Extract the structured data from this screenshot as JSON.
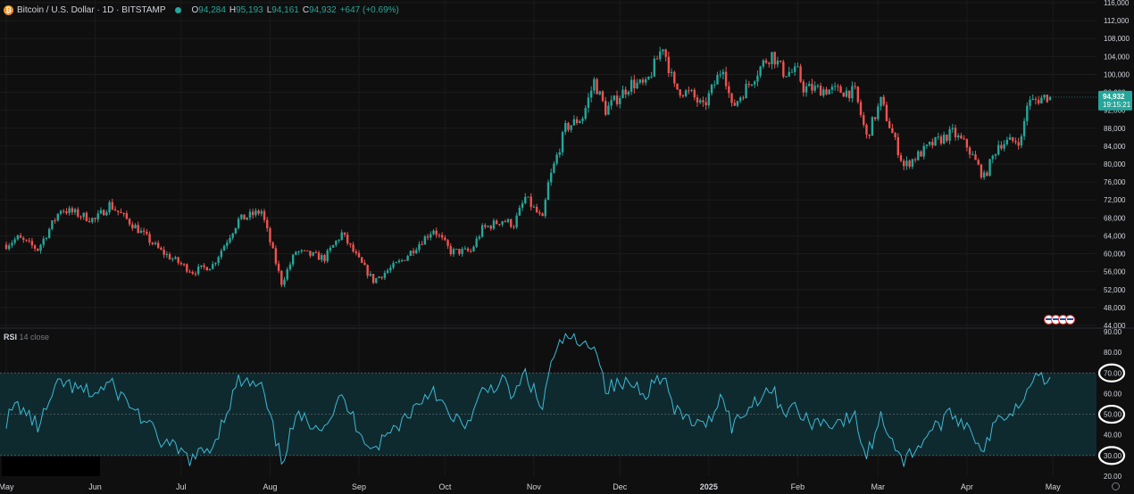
{
  "header": {
    "symbol": "Bitcoin / U.S. Dollar · 1D · BITSTAMP",
    "open_label": "O",
    "open": "94,284",
    "high_label": "H",
    "high": "95,193",
    "low_label": "L",
    "low": "94,161",
    "close_label": "C",
    "close": "94,932",
    "change": "+647 (+0.69%)"
  },
  "price_badge": {
    "price": "94,932",
    "countdown": "19:15:21"
  },
  "rsi": {
    "title": "RSI",
    "params": "14 close"
  },
  "colors": {
    "up": "#26a69a",
    "down": "#ef5350",
    "rsi_line": "#3fb8d6",
    "rsi_band": "#0f2a2e"
  },
  "chart_data": [
    {
      "type": "candlestick",
      "title": "Bitcoin / U.S. Dollar · 1D · BITSTAMP",
      "x_ticks": [
        "May",
        "Jun",
        "Jul",
        "Aug",
        "Sep",
        "Oct",
        "Nov",
        "Dec",
        "2025",
        "Feb",
        "Mar",
        "Apr",
        "May"
      ],
      "y_ticks": [
        44000,
        48000,
        52000,
        56000,
        60000,
        64000,
        68000,
        72000,
        76000,
        80000,
        84000,
        88000,
        92000,
        96000,
        100000,
        104000,
        108000,
        112000,
        116000
      ],
      "ylim": [
        44000,
        116000
      ],
      "anchors_close": [
        [
          "2024-05-01",
          62000
        ],
        [
          "2024-05-05",
          63500
        ],
        [
          "2024-05-12",
          61000
        ],
        [
          "2024-05-20",
          70000
        ],
        [
          "2024-05-25",
          69000
        ],
        [
          "2024-06-01",
          67500
        ],
        [
          "2024-06-06",
          71000
        ],
        [
          "2024-06-15",
          66000
        ],
        [
          "2024-06-24",
          60500
        ],
        [
          "2024-07-05",
          56000
        ],
        [
          "2024-07-12",
          57500
        ],
        [
          "2024-07-21",
          67500
        ],
        [
          "2024-07-29",
          69500
        ],
        [
          "2024-08-05",
          53500
        ],
        [
          "2024-08-10",
          60500
        ],
        [
          "2024-08-20",
          59000
        ],
        [
          "2024-08-26",
          64500
        ],
        [
          "2024-09-01",
          58500
        ],
        [
          "2024-09-06",
          54000
        ],
        [
          "2024-09-16",
          58500
        ],
        [
          "2024-09-27",
          65500
        ],
        [
          "2024-10-03",
          60500
        ],
        [
          "2024-10-10",
          60500
        ],
        [
          "2024-10-14",
          65500
        ],
        [
          "2024-10-21",
          67500
        ],
        [
          "2024-10-25",
          66500
        ],
        [
          "2024-10-29",
          72500
        ],
        [
          "2024-11-04",
          67500
        ],
        [
          "2024-11-06",
          75500
        ],
        [
          "2024-11-12",
          88000
        ],
        [
          "2024-11-18",
          90500
        ],
        [
          "2024-11-22",
          98500
        ],
        [
          "2024-11-26",
          92000
        ],
        [
          "2024-12-05",
          98000
        ],
        [
          "2024-12-10",
          97500
        ],
        [
          "2024-12-16",
          106500
        ],
        [
          "2024-12-20",
          97000
        ],
        [
          "2024-12-26",
          95500
        ],
        [
          "2024-12-30",
          92500
        ],
        [
          "2025-01-06",
          102000
        ],
        [
          "2025-01-09",
          92500
        ],
        [
          "2025-01-14",
          97000
        ],
        [
          "2025-01-20",
          102500
        ],
        [
          "2025-01-23",
          104500
        ],
        [
          "2025-01-27",
          100500
        ],
        [
          "2025-02-01",
          100500
        ],
        [
          "2025-02-03",
          97000
        ],
        [
          "2025-02-12",
          96500
        ],
        [
          "2025-02-21",
          96000
        ],
        [
          "2025-02-25",
          86000
        ],
        [
          "2025-03-02",
          94000
        ],
        [
          "2025-03-10",
          79500
        ],
        [
          "2025-03-20",
          84500
        ],
        [
          "2025-03-27",
          87000
        ],
        [
          "2025-04-01",
          84000
        ],
        [
          "2025-04-07",
          77000
        ],
        [
          "2025-04-12",
          84500
        ],
        [
          "2025-04-20",
          85500
        ],
        [
          "2025-04-22",
          93500
        ],
        [
          "2025-04-28",
          95000
        ],
        [
          "2025-04-30",
          94932
        ]
      ],
      "last_candle": {
        "open": 94284,
        "high": 95193,
        "low": 94161,
        "close": 94932
      }
    },
    {
      "type": "line",
      "title": "RSI 14 close",
      "y_ticks": [
        20,
        30,
        40,
        50,
        60,
        70,
        80,
        90
      ],
      "ylim": [
        20,
        90
      ],
      "bands": [
        30,
        50,
        70
      ],
      "highlighted_levels": [
        "70.00",
        "50.00",
        "30.00"
      ],
      "anchors": [
        [
          "2024-05-01",
          47
        ],
        [
          "2024-05-05",
          55
        ],
        [
          "2024-05-12",
          44
        ],
        [
          "2024-05-20",
          66
        ],
        [
          "2024-05-25",
          62
        ],
        [
          "2024-06-01",
          60
        ],
        [
          "2024-06-06",
          65
        ],
        [
          "2024-06-15",
          52
        ],
        [
          "2024-06-24",
          37
        ],
        [
          "2024-07-05",
          28
        ],
        [
          "2024-07-12",
          35
        ],
        [
          "2024-07-21",
          66
        ],
        [
          "2024-07-29",
          63
        ],
        [
          "2024-08-05",
          27
        ],
        [
          "2024-08-10",
          48
        ],
        [
          "2024-08-20",
          45
        ],
        [
          "2024-08-26",
          58
        ],
        [
          "2024-09-01",
          43
        ],
        [
          "2024-09-06",
          33
        ],
        [
          "2024-09-16",
          47
        ],
        [
          "2024-09-27",
          63
        ],
        [
          "2024-10-03",
          47
        ],
        [
          "2024-10-10",
          46
        ],
        [
          "2024-10-14",
          61
        ],
        [
          "2024-10-21",
          66
        ],
        [
          "2024-10-25",
          58
        ],
        [
          "2024-10-29",
          70
        ],
        [
          "2024-11-04",
          52
        ],
        [
          "2024-11-06",
          70
        ],
        [
          "2024-11-12",
          89
        ],
        [
          "2024-11-18",
          82
        ],
        [
          "2024-11-22",
          86
        ],
        [
          "2024-11-26",
          63
        ],
        [
          "2024-12-05",
          65
        ],
        [
          "2024-12-10",
          61
        ],
        [
          "2024-12-16",
          70
        ],
        [
          "2024-12-20",
          51
        ],
        [
          "2024-12-26",
          47
        ],
        [
          "2024-12-30",
          43
        ],
        [
          "2025-01-06",
          60
        ],
        [
          "2025-01-09",
          44
        ],
        [
          "2025-01-14",
          52
        ],
        [
          "2025-01-20",
          61
        ],
        [
          "2025-01-23",
          62
        ],
        [
          "2025-01-27",
          52
        ],
        [
          "2025-02-01",
          53
        ],
        [
          "2025-02-03",
          47
        ],
        [
          "2025-02-12",
          46
        ],
        [
          "2025-02-21",
          48
        ],
        [
          "2025-02-25",
          29
        ],
        [
          "2025-03-02",
          49
        ],
        [
          "2025-03-10",
          27
        ],
        [
          "2025-03-20",
          43
        ],
        [
          "2025-03-27",
          50
        ],
        [
          "2025-04-01",
          45
        ],
        [
          "2025-04-07",
          33
        ],
        [
          "2025-04-12",
          48
        ],
        [
          "2025-04-20",
          55
        ],
        [
          "2025-04-22",
          66
        ],
        [
          "2025-04-26",
          70
        ],
        [
          "2025-04-28",
          66
        ],
        [
          "2025-04-30",
          68
        ]
      ]
    }
  ]
}
